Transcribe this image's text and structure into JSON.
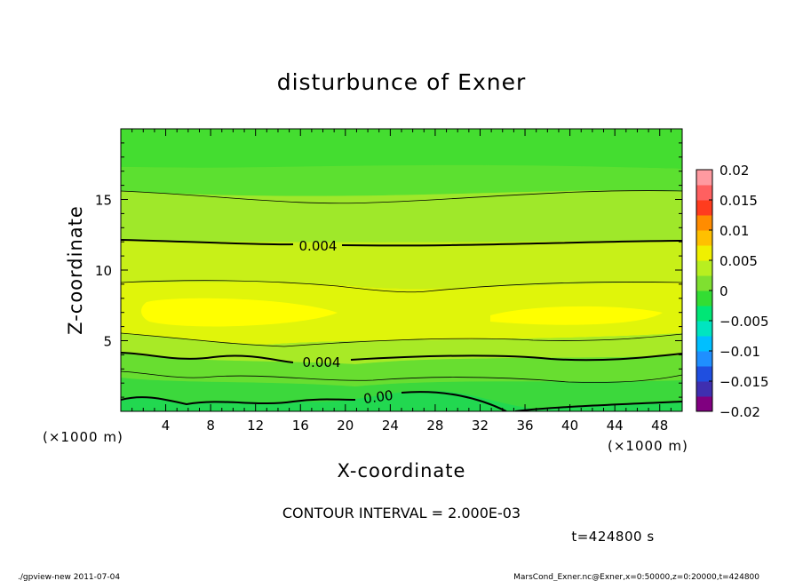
{
  "chart_data": {
    "type": "heatmap",
    "title": "disturbunce of Exner",
    "xlabel": "X-coordinate",
    "ylabel": "Z-coordinate",
    "x_unit": "(×1000 m)",
    "y_unit": "(×1000 m)",
    "xlim": [
      0,
      50
    ],
    "ylim": [
      0,
      20
    ],
    "x_ticks": [
      4,
      8,
      12,
      16,
      20,
      24,
      28,
      32,
      36,
      40,
      44,
      48
    ],
    "y_ticks": [
      5,
      10,
      15
    ],
    "contour_interval_text": "CONTOUR INTERVAL = 2.000E-03",
    "time_text": "t=424800 s",
    "contour_labels": [
      "0.004",
      "0.004",
      "0.00"
    ],
    "colorbar": {
      "tick_labels": [
        "0.02",
        "0.015",
        "0.01",
        "0.005",
        "0",
        "−0.005",
        "−0.01",
        "−0.015",
        "−0.02"
      ],
      "range": [
        -0.02,
        0.02
      ],
      "colors": [
        "#800080",
        "#3f2fb0",
        "#1f4fe0",
        "#1f8fff",
        "#00bfff",
        "#00e5c0",
        "#00e676",
        "#33dd33",
        "#7fe030",
        "#b8ef20",
        "#f0f000",
        "#ffc000",
        "#ff8c00",
        "#ff3c1e",
        "#ff6060",
        "#ff9aa0"
      ]
    },
    "field_levels": [
      {
        "z": 19.5,
        "value": 0.002
      },
      {
        "z": 18.5,
        "value": 0.0022
      },
      {
        "z": 17,
        "value": 0.0026
      },
      {
        "z": 15.5,
        "value": 0.003
      },
      {
        "z": 13.5,
        "value": 0.0036
      },
      {
        "z": 12,
        "value": 0.004
      },
      {
        "z": 10.5,
        "value": 0.0045
      },
      {
        "z": 9,
        "value": 0.005
      },
      {
        "z": 7,
        "value": 0.0058
      },
      {
        "z": 5.5,
        "value": 0.005
      },
      {
        "z": 4,
        "value": 0.004
      },
      {
        "z": 2.5,
        "value": 0.0025
      },
      {
        "z": 1.2,
        "value": 0.001
      },
      {
        "z": 0.2,
        "value": 0
      }
    ]
  },
  "footer": {
    "left": "./gpview-new   2011-07-04",
    "right": "MarsCond_Exner.nc@Exner,x=0:50000,z=0:20000,t=424800"
  }
}
